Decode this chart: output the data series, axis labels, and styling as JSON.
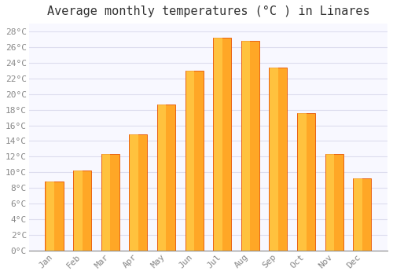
{
  "title": "Average monthly temperatures (°C ) in Linares",
  "months": [
    "Jan",
    "Feb",
    "Mar",
    "Apr",
    "May",
    "Jun",
    "Jul",
    "Aug",
    "Sep",
    "Oct",
    "Nov",
    "Dec"
  ],
  "values": [
    8.8,
    10.2,
    12.3,
    14.8,
    18.7,
    23.0,
    27.2,
    26.8,
    23.4,
    17.6,
    12.3,
    9.2
  ],
  "bar_color": "#FFA726",
  "bar_edge_color": "#E65100",
  "background_color": "#FFFFFF",
  "plot_bg_color": "#F8F8FF",
  "grid_color": "#DDDDEE",
  "ylim": [
    0,
    29
  ],
  "ytick_step": 2,
  "title_fontsize": 11,
  "tick_fontsize": 8,
  "tick_color": "#888888",
  "font_family": "monospace"
}
